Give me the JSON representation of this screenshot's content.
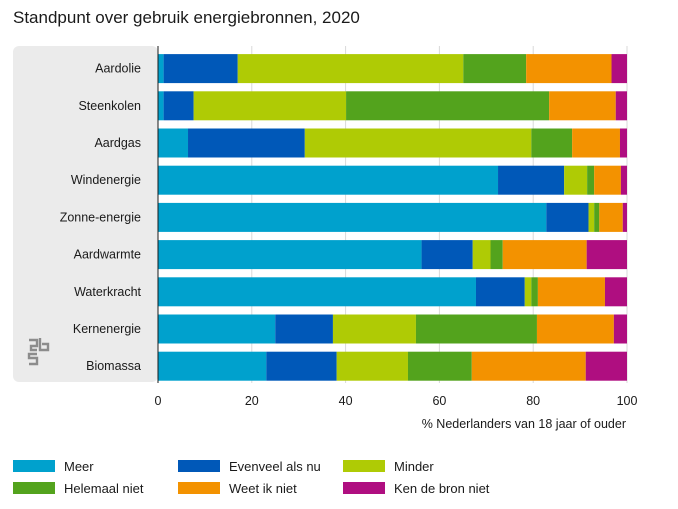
{
  "title": "Standpunt over gebruik energiebronnen, 2020",
  "chart_data": {
    "type": "bar",
    "orientation": "horizontal",
    "stacked": true,
    "title": "Standpunt over gebruik energiebronnen, 2020",
    "xlabel": "% Nederlanders van 18 jaar of ouder",
    "ylabel": "",
    "xlim": [
      0,
      100
    ],
    "xticks": [
      0,
      20,
      40,
      60,
      80,
      100
    ],
    "grid": true,
    "legend_position": "bottom",
    "categories": [
      "Aardolie",
      "Steenkolen",
      "Aardgas",
      "Windenergie",
      "Zonne-energie",
      "Aardwarmte",
      "Waterkracht",
      "Kernenergie",
      "Biomassa"
    ],
    "series": [
      {
        "name": "Meer",
        "color": "#00a1cd",
        "values": [
          1.2,
          1.2,
          6.4,
          72.5,
          82.8,
          56.2,
          67.8,
          25.0,
          23.1
        ]
      },
      {
        "name": "Evenveel als nu",
        "color": "#0058b8",
        "values": [
          15.8,
          6.4,
          24.9,
          14.1,
          9.0,
          10.9,
          10.4,
          12.3,
          15.0
        ]
      },
      {
        "name": "Minder",
        "color": "#afcb05",
        "values": [
          48.1,
          32.5,
          48.3,
          4.9,
          1.2,
          3.8,
          1.4,
          17.7,
          15.2
        ]
      },
      {
        "name": "Helemaal niet",
        "color": "#53a31d",
        "values": [
          13.4,
          43.3,
          8.7,
          1.5,
          1.1,
          2.6,
          1.4,
          25.8,
          13.6
        ]
      },
      {
        "name": "Weet ik niet",
        "color": "#f39200",
        "values": [
          18.2,
          14.2,
          10.2,
          5.7,
          5.0,
          17.9,
          14.3,
          16.4,
          24.3
        ]
      },
      {
        "name": "Ken de bron niet",
        "color": "#af0e80",
        "values": [
          3.3,
          2.4,
          1.5,
          1.3,
          0.9,
          8.6,
          4.7,
          2.8,
          8.8
        ]
      }
    ]
  }
}
